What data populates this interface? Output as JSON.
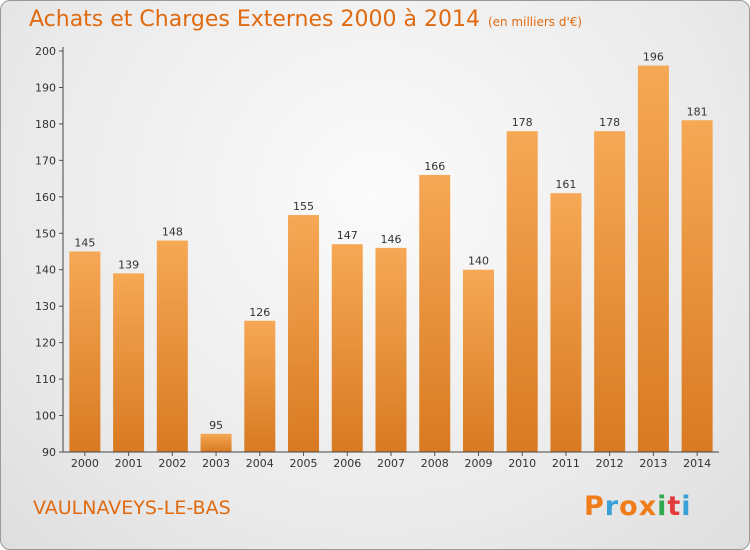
{
  "title": "Achats et Charges Externes 2000 à 2014",
  "subtitle": "(en milliers d'€)",
  "location": "VAULNAVEYS-LE-BAS",
  "brand": "Proxiti",
  "colors": {
    "accent": "#e06a10",
    "bar_light": "#f6a855",
    "bar_dark": "#d87a22",
    "logo_letters": [
      "#f07c1a",
      "#3aa0d8",
      "#f07c1a",
      "#f07c1a",
      "#2fa84f",
      "#e23b3b",
      "#3aa0d8"
    ]
  },
  "chart_data": {
    "type": "bar",
    "title": "Achats et Charges Externes 2000 à 2014",
    "categories": [
      "2000",
      "2001",
      "2002",
      "2003",
      "2004",
      "2005",
      "2006",
      "2007",
      "2008",
      "2009",
      "2010",
      "2011",
      "2012",
      "2013",
      "2014"
    ],
    "values": [
      145,
      139,
      148,
      95,
      126,
      155,
      147,
      146,
      166,
      140,
      178,
      161,
      178,
      196,
      181
    ],
    "ylim": [
      90,
      200
    ],
    "yticks": [
      90,
      100,
      110,
      120,
      130,
      140,
      150,
      160,
      170,
      180,
      190,
      200
    ],
    "grid": false
  }
}
